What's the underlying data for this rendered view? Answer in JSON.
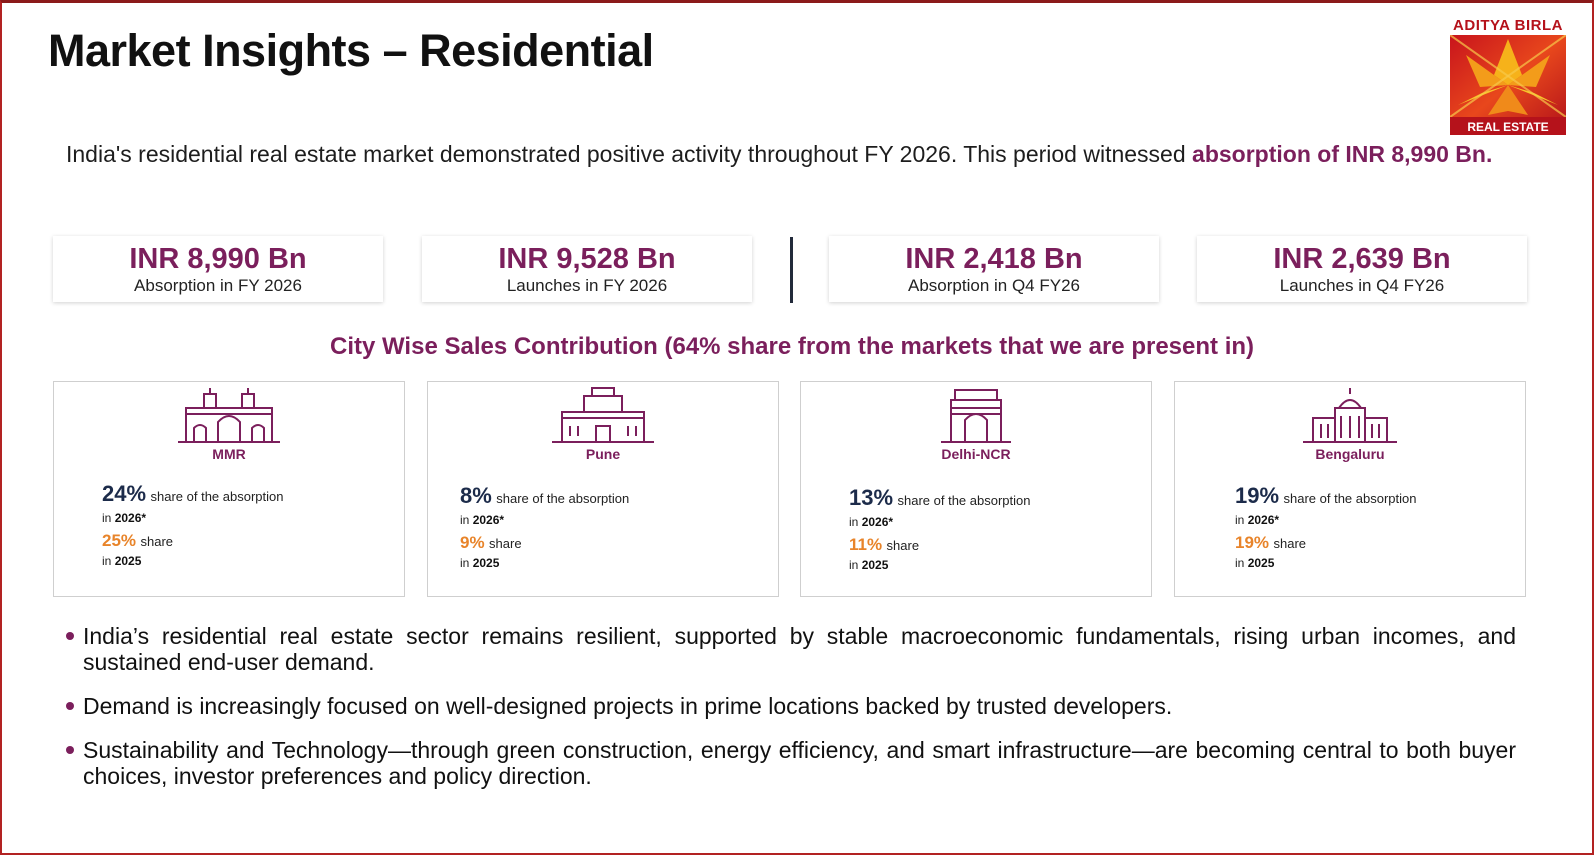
{
  "page": {
    "title": "Market Insights – Residential"
  },
  "logo": {
    "name": "ADITYA BIRLA",
    "tagline": "REAL ESTATE"
  },
  "intro": {
    "text": "India's residential real estate market demonstrated positive activity throughout FY 2026. This period witnessed ",
    "highlight": "absorption of INR 8,990 Bn."
  },
  "stats": [
    {
      "value": "INR 8,990 Bn",
      "label": "Absorption in FY 2026"
    },
    {
      "value": "INR 9,528 Bn",
      "label": "Launches in FY 2026"
    },
    {
      "value": "INR 2,418 Bn",
      "label": "Absorption in Q4 FY26"
    },
    {
      "value": "INR 2,639 Bn",
      "label": "Launches in Q4 FY26"
    }
  ],
  "section": {
    "heading": "City Wise Sales Contribution (64% share from the markets that we are present in)"
  },
  "cities": [
    {
      "name": "MMR",
      "icon": "gateway-of-india-icon",
      "share": "24%",
      "share_text": "share of the absorption",
      "in_label": "in",
      "year": "2026*",
      "prev_share": "25%",
      "prev_text": "share",
      "prev_year": "2025"
    },
    {
      "name": "Pune",
      "icon": "shaniwar-wada-fort-icon",
      "share": "8%",
      "share_text": "share of the absorption",
      "in_label": "in",
      "year": "2026*",
      "prev_share": "9%",
      "prev_text": "share",
      "prev_year": "2025"
    },
    {
      "name": "Delhi-NCR",
      "icon": "india-gate-icon",
      "share": "13%",
      "share_text": "share of the absorption",
      "in_label": "in",
      "year": "2026*",
      "prev_share": "11%",
      "prev_text": "share",
      "prev_year": "2025"
    },
    {
      "name": "Bengaluru",
      "icon": "vidhana-soudha-icon",
      "share": "19%",
      "share_text": "share of the absorption",
      "in_label": "in",
      "year": "2026*",
      "prev_share": "19%",
      "prev_text": "share",
      "prev_year": "2025"
    }
  ],
  "bullets": [
    "India’s residential real estate sector remains resilient, supported by stable macroeconomic fundamentals, rising urban incomes, and sustained end-user demand.",
    "Demand is increasingly focused on well-designed projects in prime locations backed by trusted developers.",
    "Sustainability and Technology—through green construction, energy efficiency, and smart infrastructure—are becoming central to both buyer choices, investor preferences and policy direction."
  ],
  "colors": {
    "accent": "#7b1f5c",
    "navy": "#1c2b4a",
    "orange": "#e8842a",
    "brand_red": "#b5121b"
  }
}
